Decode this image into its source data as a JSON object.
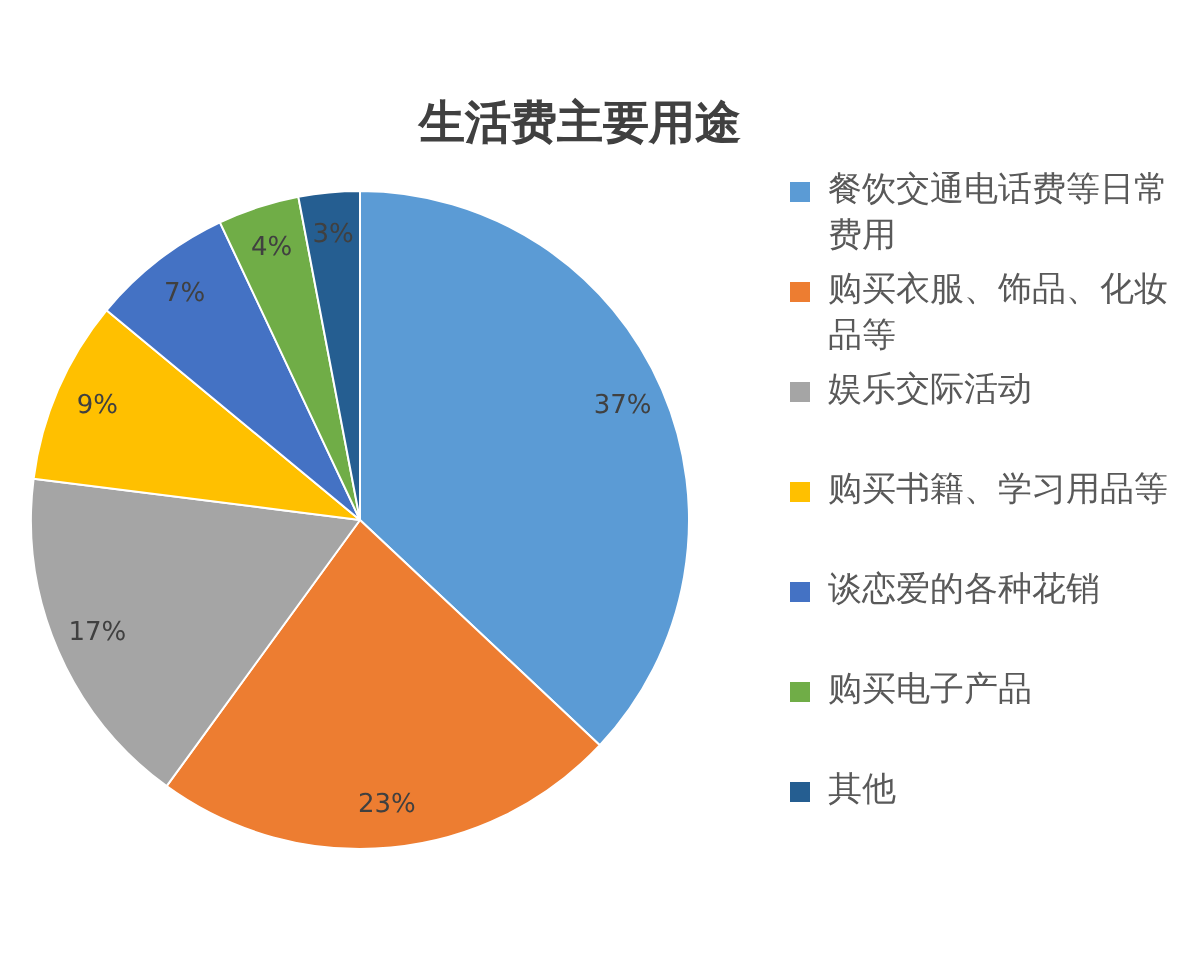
{
  "chart_data": {
    "type": "pie",
    "title": "生活费主要用途",
    "categories": [
      "餐饮交通电话费等日常费用",
      "购买衣服、饰品、化妆品等",
      "娱乐交际活动",
      "购买书籍、学习用品等",
      "谈恋爱的各种花销",
      "购买电子产品",
      "其他"
    ],
    "values": [
      37,
      23,
      17,
      9,
      7,
      4,
      3
    ],
    "colors": [
      "#5b9bd5",
      "#ed7d31",
      "#a5a5a5",
      "#ffc000",
      "#4472c4",
      "#70ad47",
      "#255e91"
    ],
    "value_labels": [
      "37%",
      "23%",
      "17%",
      "9%",
      "7%",
      "4%",
      "3%"
    ],
    "legend": "right"
  }
}
